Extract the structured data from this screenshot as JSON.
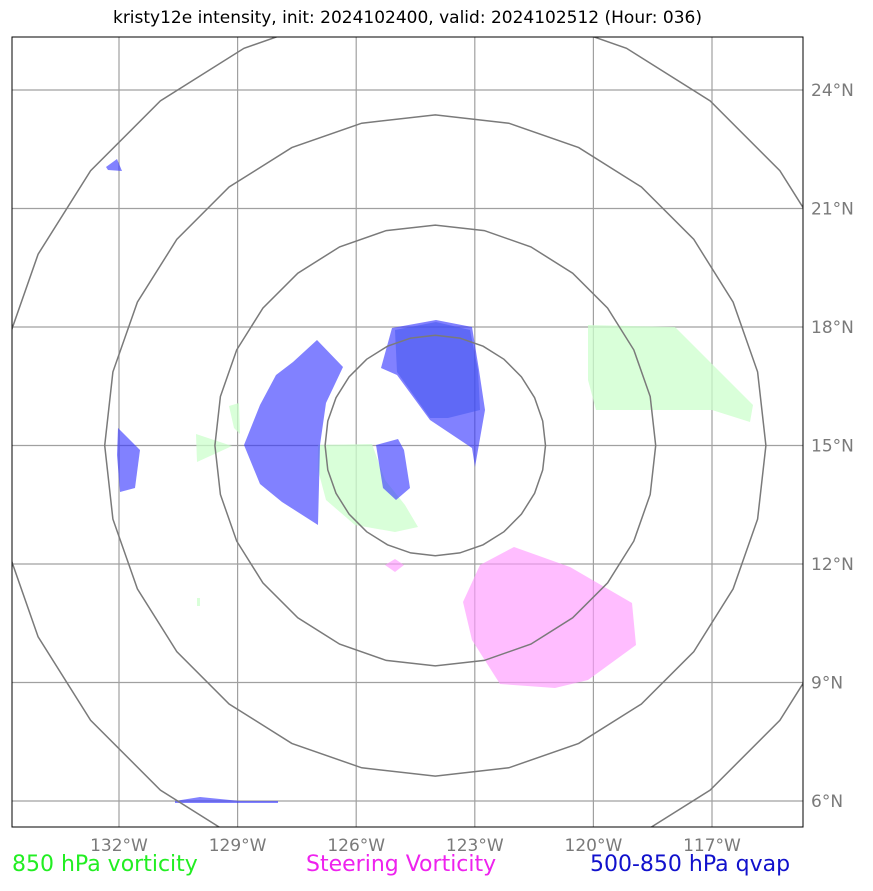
{
  "title": "kristy12e intensity, init: 2024102400, valid: 2024102512 (Hour: 036)",
  "map": {
    "lon_ticks": [
      {
        "value": -132,
        "label": "132°W"
      },
      {
        "value": -129,
        "label": "129°W"
      },
      {
        "value": -126,
        "label": "126°W"
      },
      {
        "value": -123,
        "label": "123°W"
      },
      {
        "value": -120,
        "label": "120°W"
      },
      {
        "value": -117,
        "label": "117°W"
      }
    ],
    "lat_ticks": [
      {
        "value": 24,
        "label": "24°N"
      },
      {
        "value": 21,
        "label": "21°N"
      },
      {
        "value": 18,
        "label": "18°N"
      },
      {
        "value": 15,
        "label": "15°N"
      },
      {
        "value": 12,
        "label": "12°N"
      },
      {
        "value": 9,
        "label": "9°N"
      },
      {
        "value": 6,
        "label": "6°N"
      }
    ],
    "range_rings": {
      "center": {
        "lon": -124.0,
        "lat": 15.0
      },
      "radii_deg": [
        3,
        6,
        9,
        12
      ]
    },
    "colors": {
      "vorticity_850": "#ccffcc",
      "steering_vorticity": "#ff99ff",
      "qvap": "#3333ff",
      "overlap": "#5577dd",
      "grid": "#a0a0a0",
      "rings": "#7a7a7a"
    }
  },
  "legend": {
    "vorticity": "850 hPa vorticity",
    "steering": "Steering Vorticity",
    "qvap": "500-850 hPa qvap"
  }
}
